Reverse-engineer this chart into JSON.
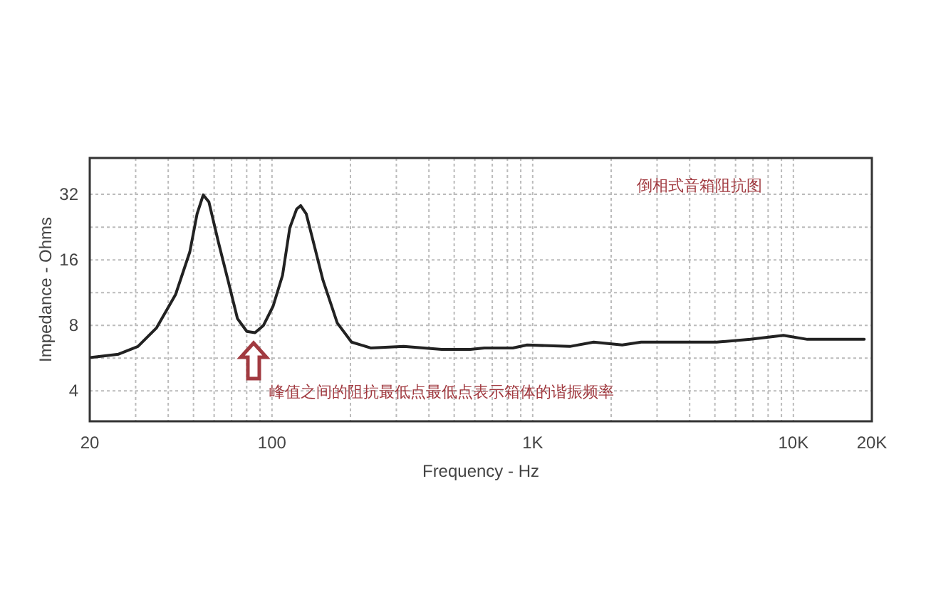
{
  "chart_data": {
    "type": "line",
    "xlabel": "Frequency - Hz",
    "ylabel": "Impedance - Ohms",
    "x": [
      20.3,
      25.8,
      30.6,
      36.1,
      42.7,
      48.4,
      51.6,
      54.5,
      57.3,
      62.3,
      67.8,
      73.7,
      80.1,
      86.1,
      92.8,
      101,
      109.8,
      117,
      124.4,
      128.8,
      135.4,
      144.2,
      156.9,
      178,
      202,
      239,
      320,
      448,
      576,
      653,
      839,
      952,
      1388,
      1714,
      2204,
      2606,
      5074,
      6840,
      9160,
      11310,
      14560,
      18700
    ],
    "series": [
      {
        "color": "#222222",
        "values": [
          5.7,
          5.9,
          6.4,
          7.8,
          11.1,
          17.4,
          26.0,
          31.8,
          29.5,
          19.3,
          12.9,
          8.6,
          7.5,
          7.4,
          8.0,
          9.8,
          13.6,
          22.4,
          27.4,
          28.4,
          26.0,
          19.3,
          12.9,
          8.2,
          6.7,
          6.3,
          6.4,
          6.2,
          6.2,
          6.3,
          6.3,
          6.5,
          6.4,
          6.7,
          6.5,
          6.7,
          6.7,
          6.9,
          7.2,
          6.9,
          6.9,
          6.9
        ]
      }
    ],
    "xlim": [
      20,
      20000
    ],
    "ylim": [
      2.9,
      47
    ],
    "xticks": [
      20,
      {
        "value": 30,
        "label": null
      },
      {
        "value": 40,
        "label": null
      },
      {
        "value": 50,
        "label": null
      },
      {
        "value": 60,
        "label": null
      },
      {
        "value": 70,
        "label": null
      },
      {
        "value": 80,
        "label": null
      },
      {
        "value": 90,
        "label": null
      },
      100,
      {
        "value": 200,
        "label": null
      },
      {
        "value": 300,
        "label": null
      },
      {
        "value": 400,
        "label": null
      },
      {
        "value": 500,
        "label": null
      },
      {
        "value": 600,
        "label": null
      },
      {
        "value": 700,
        "label": null
      },
      {
        "value": 800,
        "label": null
      },
      {
        "value": 900,
        "label": null
      },
      {
        "value": 1000,
        "label": "1K"
      },
      {
        "value": 2000,
        "label": null
      },
      {
        "value": 3000,
        "label": null
      },
      {
        "value": 4000,
        "label": null
      },
      {
        "value": 5000,
        "label": null
      },
      {
        "value": 6000,
        "label": null
      },
      {
        "value": 7000,
        "label": null
      },
      {
        "value": 8000,
        "label": null
      },
      {
        "value": 9000,
        "label": null
      },
      {
        "value": 10000,
        "label": "10K"
      },
      {
        "value": 20000,
        "label": "20K"
      }
    ],
    "yticks": [
      4,
      {
        "value": 5.66,
        "label": null
      },
      8,
      {
        "value": 11.3,
        "label": null
      },
      16,
      {
        "value": 22.6,
        "label": null
      },
      32
    ],
    "log": "xy",
    "grid": true,
    "annotations": [
      "倒相式音箱阻抗图",
      "峰值之间的阻抗最低点最低点表示箱体的谐振频率"
    ]
  }
}
